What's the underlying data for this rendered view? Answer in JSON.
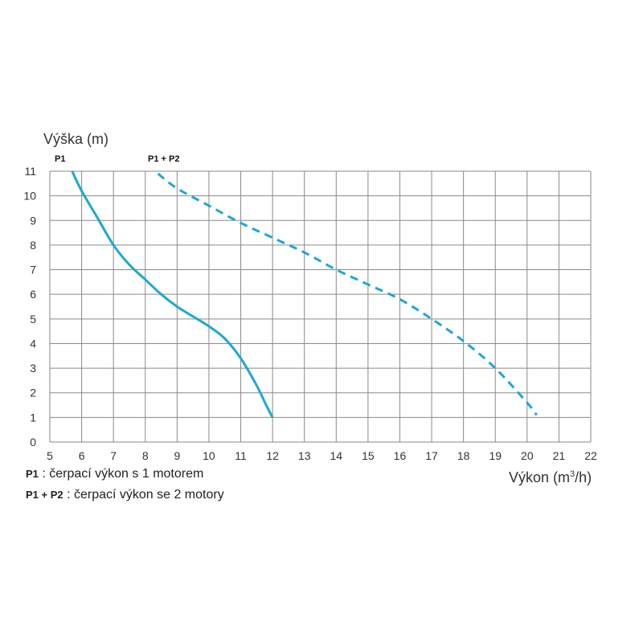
{
  "chart_data": {
    "type": "line",
    "ylabel": "Výška (m)",
    "xlabel": {
      "prefix": "Výkon (m",
      "sup": "3",
      "suffix": "/h)"
    },
    "xlim": [
      5,
      22
    ],
    "ylim": [
      0,
      11
    ],
    "x_ticks": [
      5,
      6,
      7,
      8,
      9,
      10,
      11,
      12,
      13,
      14,
      15,
      16,
      17,
      18,
      19,
      20,
      21,
      22
    ],
    "y_ticks": [
      0,
      1,
      2,
      3,
      4,
      5,
      6,
      7,
      8,
      9,
      10,
      11
    ],
    "grid": true,
    "color": "#1ba8d8",
    "series": [
      {
        "name": "P1",
        "style": "solid",
        "x": [
          5.7,
          6.0,
          6.5,
          7.0,
          7.5,
          8.0,
          8.5,
          9.0,
          9.5,
          10.0,
          10.5,
          11.0,
          11.5,
          11.8,
          12.0
        ],
        "y": [
          11.0,
          10.2,
          9.1,
          8.0,
          7.2,
          6.6,
          6.0,
          5.5,
          5.1,
          4.7,
          4.2,
          3.4,
          2.3,
          1.5,
          1.0
        ]
      },
      {
        "name": "P1 + P2",
        "style": "dashed",
        "x": [
          8.4,
          9.0,
          10.0,
          11.0,
          12.0,
          13.0,
          14.0,
          15.0,
          16.0,
          17.0,
          18.0,
          19.0,
          20.0,
          20.3
        ],
        "y": [
          10.9,
          10.3,
          9.6,
          8.9,
          8.3,
          7.7,
          7.0,
          6.4,
          5.8,
          5.0,
          4.1,
          3.0,
          1.6,
          1.1
        ]
      }
    ]
  },
  "legend": [
    {
      "key": "P1",
      "text": " : čerpací výkon s 1 motorem"
    },
    {
      "key": "P1 + P2",
      "text": " : čerpací výkon se 2 motory"
    }
  ]
}
